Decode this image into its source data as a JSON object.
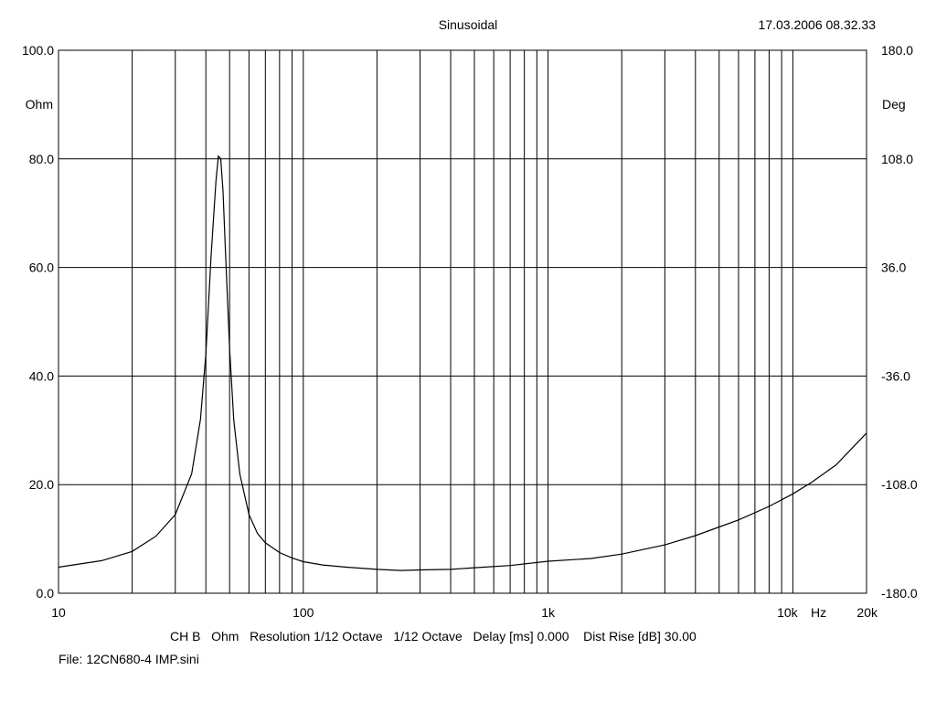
{
  "header": {
    "title": "Sinusoidal",
    "timestamp": "17.03.2006 08.32.33"
  },
  "footer": {
    "info_line": "CH B   Ohm   Resolution 1/12 Octave   1/12 Octave   Delay [ms] 0.000    Dist Rise [dB] 30.00",
    "file_line": "File: 12CN680-4 IMP.sini"
  },
  "chart_data": {
    "type": "line",
    "title": "Sinusoidal",
    "xscale": "log",
    "xlim": [
      10,
      20000
    ],
    "ylim": [
      0,
      100
    ],
    "y2lim": [
      -180,
      180
    ],
    "ylabel": "Ohm",
    "y2label": "Deg",
    "xlabel": "Hz",
    "grid": true,
    "x_ticks": [
      {
        "value": 10,
        "label": "10"
      },
      {
        "value": 100,
        "label": "100"
      },
      {
        "value": 1000,
        "label": "1k"
      },
      {
        "value": 10000,
        "label": "10k"
      },
      {
        "value": 20000,
        "label": "20k"
      }
    ],
    "y_ticks": [
      "0.0",
      "20.0",
      "40.0",
      "60.0",
      "80.0",
      "100.0"
    ],
    "y2_ticks": [
      "-180.0",
      "-108.0",
      "-36.0",
      "36.0",
      "108.0",
      "180.0"
    ],
    "series": [
      {
        "x": [
          10,
          15,
          20,
          25,
          30,
          35,
          38,
          40,
          42,
          44,
          45,
          46,
          47,
          48,
          50,
          52,
          55,
          60,
          65,
          70,
          80,
          90,
          100,
          120,
          150,
          200,
          250,
          300,
          400,
          500,
          700,
          1000,
          1500,
          2000,
          3000,
          4000,
          5000,
          6000,
          8000,
          10000,
          12000,
          15000,
          20000
        ],
        "y": [
          4.8,
          6.0,
          7.7,
          10.5,
          14.5,
          22.0,
          32.0,
          44.0,
          62.0,
          76.0,
          80.5,
          80.0,
          74.0,
          64.0,
          45.0,
          32.0,
          22.0,
          14.5,
          11.0,
          9.3,
          7.5,
          6.5,
          5.8,
          5.2,
          4.8,
          4.4,
          4.2,
          4.3,
          4.4,
          4.7,
          5.1,
          5.9,
          6.4,
          7.2,
          8.9,
          10.6,
          12.2,
          13.5,
          16.0,
          18.3,
          20.5,
          23.6,
          29.5
        ]
      }
    ]
  }
}
